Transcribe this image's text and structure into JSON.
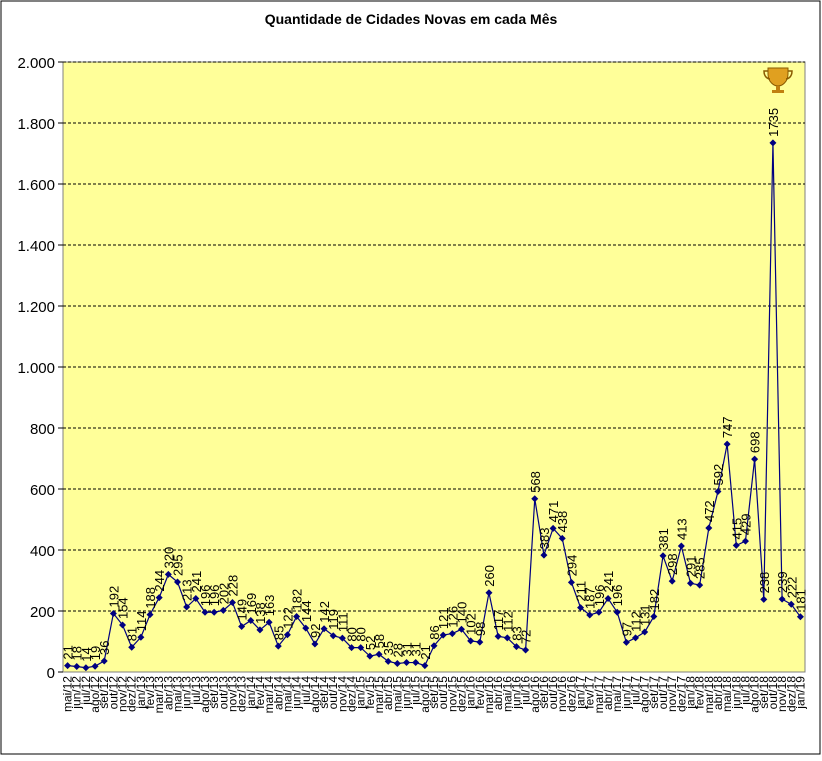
{
  "chart_data": {
    "type": "line",
    "title": "Quantidade de Cidades Novas em cada Mês",
    "categories": [
      "mai/12",
      "jun/12",
      "jul/12",
      "ago/12",
      "set/12",
      "out/12",
      "nov/12",
      "dez/12",
      "jan/13",
      "fev/13",
      "mar/13",
      "abr/13",
      "mai/13",
      "jun/13",
      "jul/13",
      "ago/13",
      "set/13",
      "out/13",
      "nov/13",
      "dez/13",
      "jan/14",
      "fev/14",
      "mar/14",
      "abr/14",
      "mai/14",
      "jun/14",
      "jul/14",
      "ago/14",
      "set/14",
      "out/14",
      "nov/14",
      "dez/14",
      "jan/15",
      "fev/15",
      "mar/15",
      "abr/15",
      "mai/15",
      "jun/15",
      "jul/15",
      "ago/15",
      "set/15",
      "out/15",
      "nov/15",
      "dez/15",
      "jan/16",
      "fev/16",
      "mar/16",
      "abr/16",
      "mai/16",
      "jun/16",
      "jul/16",
      "ago/16",
      "set/16",
      "out/16",
      "nov/16",
      "dez/16",
      "jan/17",
      "fev/17",
      "mar/17",
      "abr/17",
      "mai/17",
      "jun/17",
      "jul/17",
      "ago/17",
      "set/17",
      "out/17",
      "nov/17",
      "dez/17",
      "jan/18",
      "fev/18",
      "mar/18",
      "abr/18",
      "mai/18",
      "jun/18",
      "jul/18",
      "ago/18",
      "set/18",
      "out/18",
      "nov/18",
      "dez/18",
      "jan/19"
    ],
    "series": [
      {
        "name": "Cidades Novas",
        "color": "#000080",
        "values": [
          21,
          18,
          14,
          19,
          36,
          192,
          154,
          81,
          114,
          188,
          244,
          320,
          295,
          213,
          241,
          196,
          196,
          202,
          228,
          149,
          169,
          138,
          163,
          85,
          122,
          182,
          144,
          92,
          142,
          119,
          111,
          80,
          80,
          52,
          58,
          35,
          28,
          31,
          31,
          21,
          86,
          121,
          126,
          140,
          102,
          98,
          260,
          117,
          112,
          83,
          72,
          568,
          383,
          471,
          438,
          294,
          211,
          187,
          196,
          241,
          196,
          97,
          112,
          131,
          182,
          381,
          298,
          413,
          291,
          285,
          472,
          592,
          747,
          415,
          429,
          698,
          238,
          1735,
          239,
          222,
          181
        ]
      }
    ],
    "ylim": [
      0,
      2000
    ],
    "yticks": [
      0,
      {
        "value": 200,
        "label": "200"
      },
      400,
      600,
      800,
      {
        "value": 1000,
        "label": "1.000"
      },
      {
        "value": 1200,
        "label": "1.200"
      },
      {
        "value": 1400,
        "label": "1.400"
      },
      {
        "value": 1600,
        "label": "1.600"
      },
      {
        "value": 1800,
        "label": "1.800"
      },
      {
        "value": 2000,
        "label": "2.000"
      }
    ],
    "grid": true,
    "plot_background": "#ffff99"
  }
}
